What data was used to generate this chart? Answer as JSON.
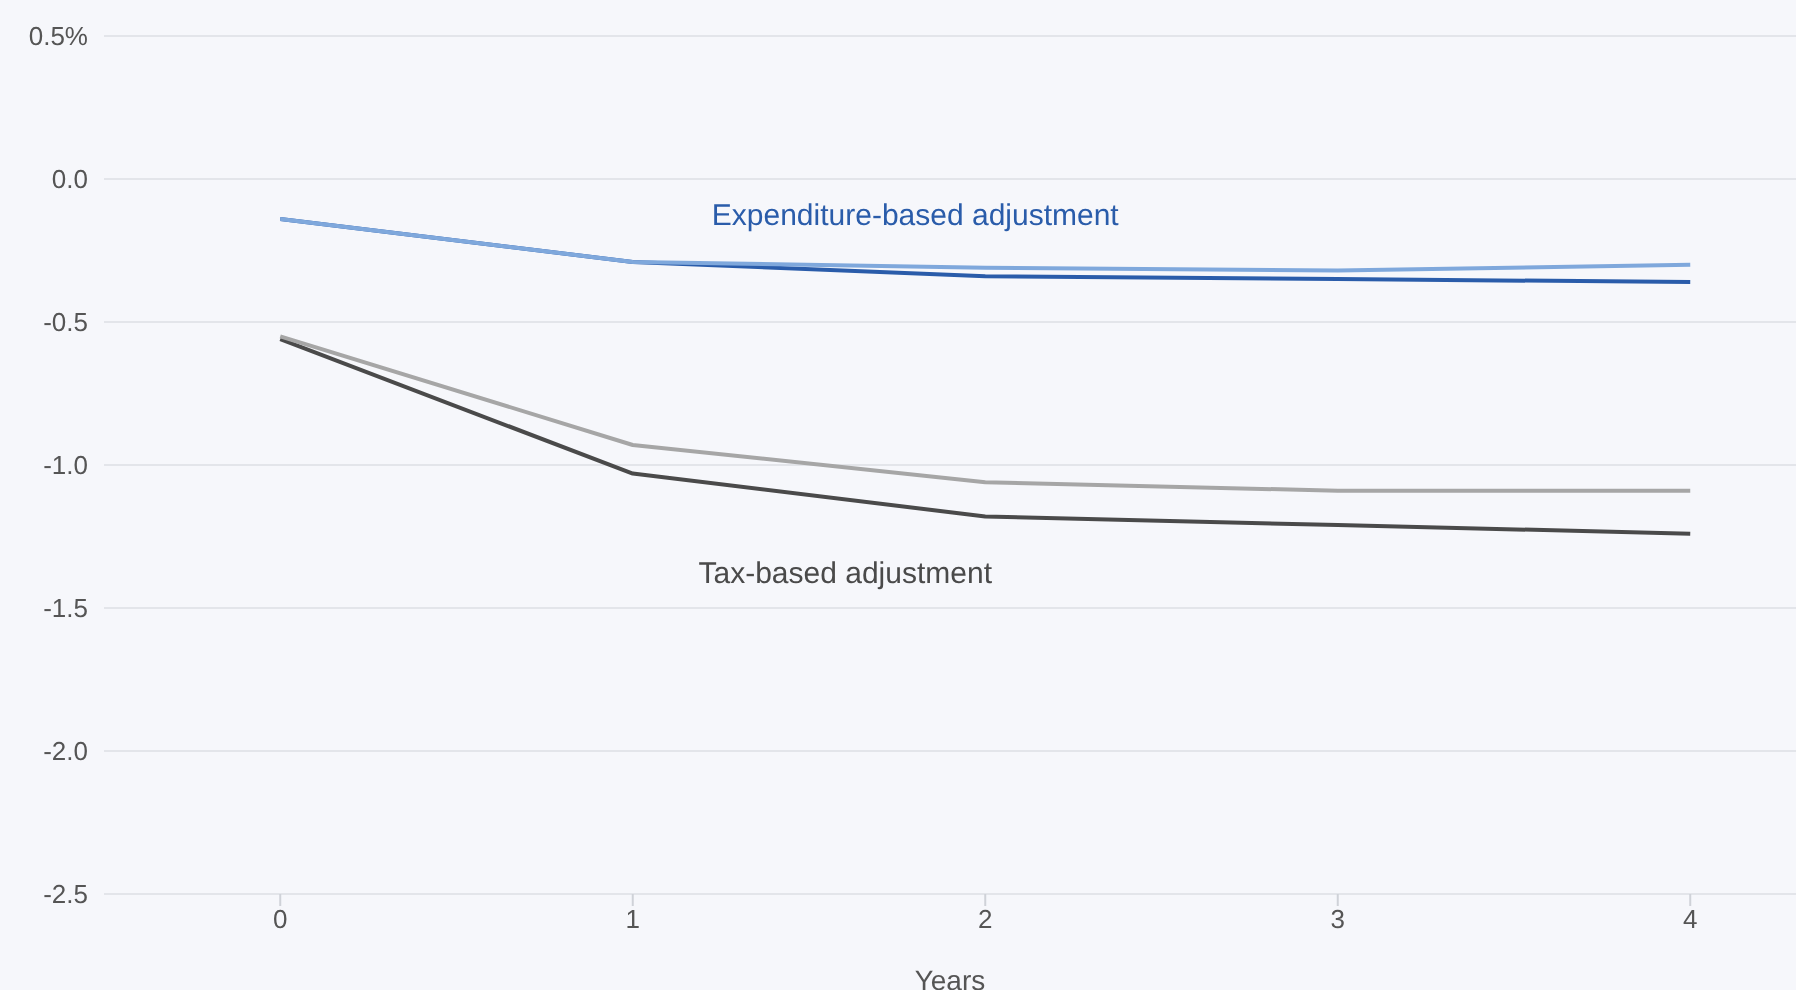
{
  "chart_data": {
    "type": "line",
    "xlabel": "Years",
    "x": [
      0,
      1,
      2,
      3,
      4
    ],
    "series": [
      {
        "name": "Expenditure-based adjustment",
        "color": "#2a5caa",
        "values": [
          -0.14,
          -0.29,
          -0.34,
          -0.35,
          -0.36
        ]
      },
      {
        "color": "#7fa8dc",
        "values": [
          -0.14,
          -0.29,
          -0.31,
          -0.32,
          -0.3
        ]
      },
      {
        "name": "Tax-based adjustment",
        "color": "#4a4a4a",
        "values": [
          -0.56,
          -1.03,
          -1.18,
          -1.21,
          -1.24
        ]
      },
      {
        "color": "#a6a6a6",
        "values": [
          -0.55,
          -0.93,
          -1.06,
          -1.09,
          -1.09
        ]
      }
    ],
    "xlim": [
      -0.5,
      4.3
    ],
    "xticks": [
      0,
      1,
      2,
      3,
      4
    ],
    "ylim": [
      -2.5,
      0.5
    ],
    "yticks": [
      {
        "value": -2.5,
        "label": "-2.5"
      },
      {
        "value": -2,
        "label": "-2.0"
      },
      {
        "value": -1.5,
        "label": "-1.5"
      },
      {
        "value": -1,
        "label": "-1.0"
      },
      {
        "value": -0.5,
        "label": "-0.5"
      },
      {
        "value": 0,
        "label": "0.0"
      },
      {
        "value": 0.5,
        "label": "0.5%"
      }
    ],
    "grid": "y",
    "legend": false,
    "marker": "none",
    "line_style": "solid"
  }
}
